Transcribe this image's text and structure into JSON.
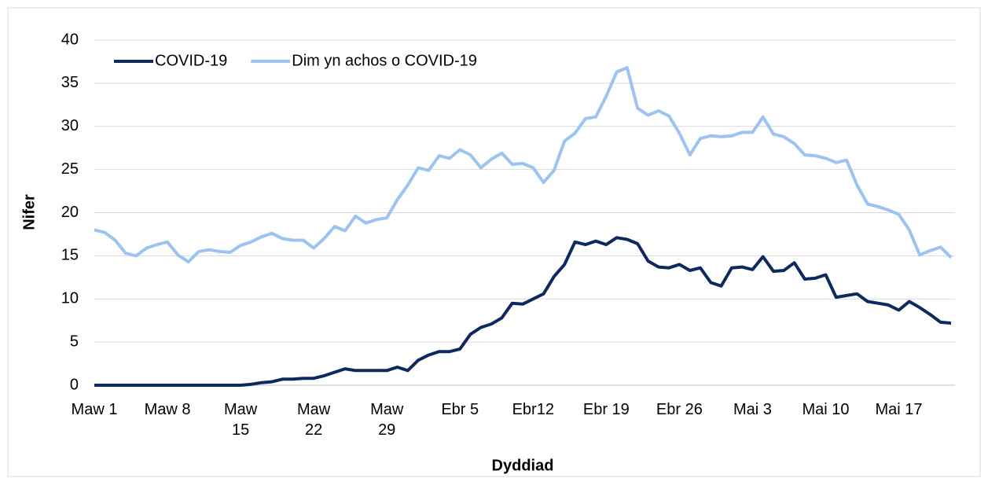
{
  "chart_data": {
    "type": "line",
    "x_label": "Dyddiad",
    "y_label": "Nifer",
    "categories": [
      "Maw 1",
      null,
      null,
      null,
      null,
      null,
      null,
      "Maw 8",
      null,
      null,
      null,
      null,
      null,
      null,
      "Maw\n15",
      null,
      null,
      null,
      null,
      null,
      null,
      "Maw\n22",
      null,
      null,
      null,
      null,
      null,
      null,
      "Maw\n29",
      null,
      null,
      null,
      null,
      null,
      null,
      "Ebr 5",
      null,
      null,
      null,
      null,
      null,
      null,
      "Ebr12",
      null,
      null,
      null,
      null,
      null,
      null,
      "Ebr 19",
      null,
      null,
      null,
      null,
      null,
      null,
      "Ebr 26",
      null,
      null,
      null,
      null,
      null,
      null,
      "Mai 3",
      null,
      null,
      null,
      null,
      null,
      null,
      "Mai 10",
      null,
      null,
      null,
      null,
      null,
      null,
      "Mai 17",
      null,
      null,
      null,
      null,
      null
    ],
    "series": [
      {
        "name": "COVID-19",
        "color": "#0c2a5e",
        "values": [
          0,
          0,
          0,
          0,
          0,
          0,
          0,
          0,
          0,
          0,
          0,
          0,
          0,
          0,
          0,
          0.1,
          0.3,
          0.4,
          0.7,
          0.7,
          0.8,
          0.8,
          1.1,
          1.5,
          1.9,
          1.7,
          1.7,
          1.7,
          1.7,
          2.1,
          1.7,
          2.9,
          3.5,
          3.9,
          3.9,
          4.2,
          5.9,
          6.7,
          7.1,
          7.8,
          9.5,
          9.4,
          10.0,
          10.6,
          12.6,
          14.0,
          16.6,
          16.3,
          16.7,
          16.3,
          17.1,
          16.9,
          16.4,
          14.4,
          13.7,
          13.6,
          14.0,
          13.3,
          13.6,
          11.9,
          11.5,
          13.6,
          13.7,
          13.4,
          14.9,
          13.2,
          13.3,
          14.2,
          12.3,
          12.4,
          12.8,
          10.2,
          10.4,
          10.6,
          9.7,
          9.5,
          9.3,
          8.7,
          9.7,
          9.0,
          8.2,
          7.3,
          7.2
        ]
      },
      {
        "name": "Dim yn achos o COVID-19",
        "color": "#9dc3f0",
        "values": [
          18.0,
          17.7,
          16.8,
          15.3,
          15.0,
          15.9,
          16.3,
          16.6,
          15.1,
          14.3,
          15.5,
          15.7,
          15.5,
          15.4,
          16.2,
          16.6,
          17.2,
          17.6,
          17.0,
          16.8,
          16.8,
          15.9,
          17.0,
          18.4,
          17.9,
          19.6,
          18.8,
          19.2,
          19.4,
          21.5,
          23.2,
          25.2,
          24.9,
          26.6,
          26.3,
          27.3,
          26.7,
          25.2,
          26.2,
          26.9,
          25.6,
          25.7,
          25.2,
          23.5,
          24.9,
          28.3,
          29.2,
          30.9,
          31.1,
          33.5,
          36.3,
          36.8,
          32.1,
          31.3,
          31.8,
          31.2,
          29.2,
          26.7,
          28.6,
          28.9,
          28.8,
          28.9,
          29.3,
          29.3,
          31.1,
          29.1,
          28.8,
          28.0,
          26.7,
          26.6,
          26.3,
          25.8,
          26.1,
          23.2,
          21.0,
          20.7,
          20.3,
          19.8,
          18.0,
          15.1,
          15.6,
          16.0,
          14.8
        ]
      }
    ],
    "ylim": [
      0,
      40
    ],
    "yticks": [
      0,
      5,
      10,
      15,
      20,
      25,
      30,
      35,
      40
    ],
    "grid": true,
    "legend": "top-left"
  }
}
